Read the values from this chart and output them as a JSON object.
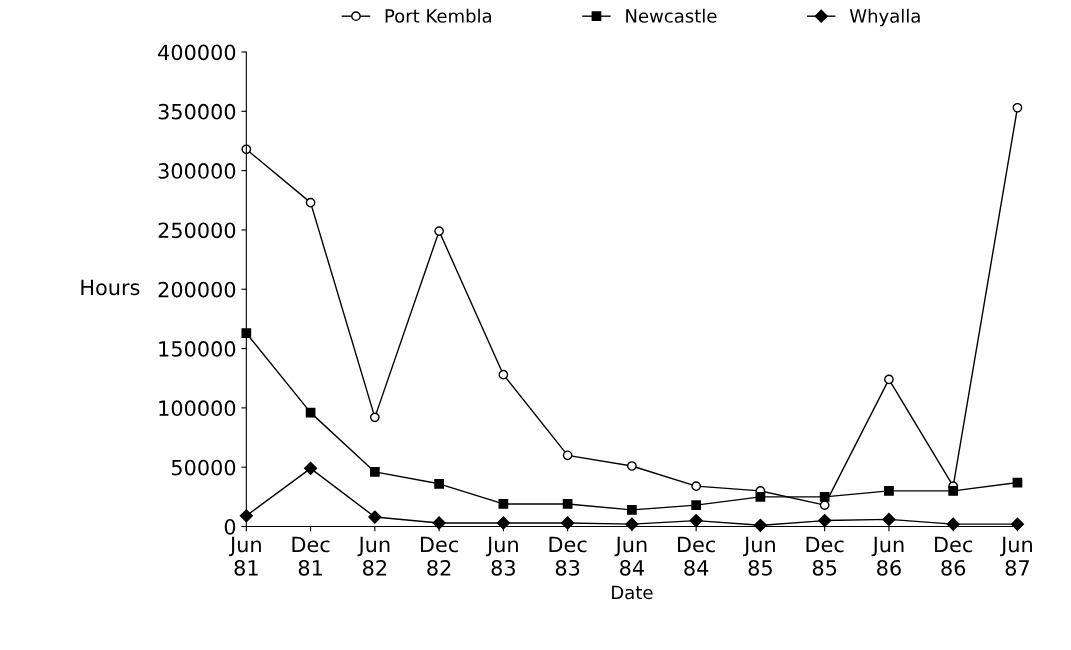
{
  "chart_data": {
    "type": "line",
    "xlabel": "Date",
    "ylabel": "Hours",
    "categories": [
      "Jun\n81",
      "Dec\n81",
      "Jun\n82",
      "Dec\n82",
      "Jun\n83",
      "Dec\n83",
      "Jun\n84",
      "Dec\n84",
      "Jun\n85",
      "Dec\n85",
      "Jun\n86",
      "Dec\n86",
      "Jun\n87"
    ],
    "series": [
      {
        "name": "Port Kembla",
        "color": "#000000",
        "marker": "circle",
        "values": [
          318000,
          273000,
          92000,
          249000,
          128000,
          60000,
          51000,
          34000,
          30000,
          18000,
          124000,
          34000,
          353000
        ]
      },
      {
        "name": "Newcastle",
        "color": "#000000",
        "marker": "square",
        "values": [
          163000,
          96000,
          46000,
          36000,
          19000,
          19000,
          14000,
          18000,
          25000,
          25000,
          30000,
          30000,
          37000
        ]
      },
      {
        "name": "Whyalla",
        "color": "#000000",
        "marker": "diamond",
        "values": [
          9000,
          49000,
          8000,
          3000,
          3000,
          3000,
          2000,
          5000,
          1000,
          5000,
          6000,
          2000,
          2000
        ]
      }
    ],
    "ylim": [
      0,
      400000
    ],
    "yticks": [
      0,
      50000,
      100000,
      150000,
      200000,
      250000,
      300000,
      350000,
      400000
    ],
    "grid": false,
    "legend": "top",
    "line_style": "solid"
  }
}
